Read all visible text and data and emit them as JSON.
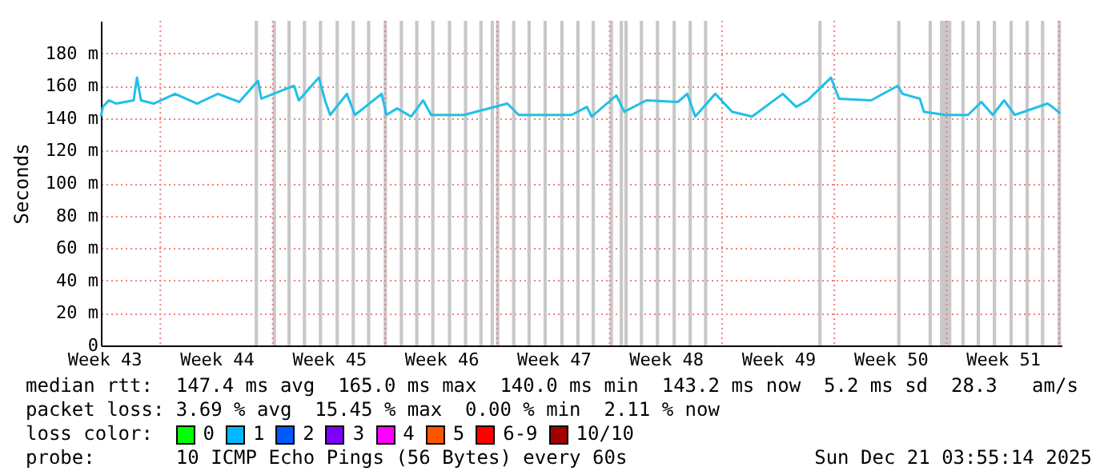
{
  "chart_data": {
    "type": "line",
    "ylabel": "Seconds",
    "x": [
      "2025-10-22T07:00",
      "2025-10-22T10:00",
      "2025-10-22T19:00",
      "2025-10-23T06:00",
      "2025-10-24T08:00",
      "2025-10-24T13:00",
      "2025-10-24T19:00",
      "2025-10-25T14:00",
      "2025-10-26T22:00",
      "2025-10-28T07:00",
      "2025-10-29T14:00",
      "2025-10-30T22:00",
      "2025-11-01T02:00",
      "2025-11-01T07:00",
      "2025-11-03T08:00",
      "2025-11-03T15:00",
      "2025-11-04T21:00",
      "2025-11-05T07:00",
      "2025-11-05T14:00",
      "2025-11-06T15:00",
      "2025-11-07T03:00",
      "2025-11-08T19:00",
      "2025-11-09T02:00",
      "2025-11-09T18:00",
      "2025-11-10T15:00",
      "2025-11-11T09:00",
      "2025-11-11T21:00",
      "2025-11-13T22:00",
      "2025-11-16T15:00",
      "2025-11-17T08:00",
      "2025-11-20T15:00",
      "2025-11-21T14:00",
      "2025-11-21T21:00",
      "2025-11-23T10:00",
      "2025-11-23T22:00",
      "2025-11-25T07:00",
      "2025-11-27T06:00",
      "2025-11-27T20:00",
      "2025-11-28T08:00",
      "2025-11-29T14:00",
      "2025-11-30T15:00",
      "2025-12-01T21:00",
      "2025-12-03T19:00",
      "2025-12-04T15:00",
      "2025-12-05T08:00",
      "2025-12-06T19:00",
      "2025-12-07T07:00",
      "2025-12-09T07:00",
      "2025-12-10T23:00",
      "2025-12-11T06:00",
      "2025-12-12T08:00",
      "2025-12-12T14:00",
      "2025-12-13T22:00",
      "2025-12-15T08:00",
      "2025-12-16T04:00",
      "2025-12-16T21:00",
      "2025-12-17T14:00",
      "2025-12-18T06:00",
      "2025-12-20T07:00",
      "2025-12-20T14:00",
      "2025-12-21T02:00"
    ],
    "series": [
      {
        "color": "#20c0e8",
        "values": [
          141,
          147,
          151,
          149,
          151,
          165,
          151,
          149,
          155,
          149,
          155,
          150,
          163,
          152,
          160,
          151,
          165,
          150,
          142,
          155,
          142,
          155,
          142,
          146,
          141,
          151,
          142,
          142,
          149,
          142,
          142,
          147,
          141,
          154,
          144,
          151,
          150,
          155,
          141,
          155,
          144,
          141,
          155,
          147,
          151,
          165,
          152,
          151,
          160,
          155,
          152,
          144,
          142,
          142,
          150,
          142,
          151,
          142,
          149,
          147,
          143
        ]
      }
    ],
    "xlim": [
      "2025-10-22T07:00",
      "2025-12-21T03:55"
    ],
    "xticks": [
      {
        "value": "2025-10-22T12:00",
        "label": "Week 43"
      },
      {
        "value": "2025-10-26",
        "label": null
      },
      {
        "value": "2025-10-29T12:00",
        "label": "Week 44"
      },
      {
        "value": "2025-11-02",
        "label": null
      },
      {
        "value": "2025-11-05T12:00",
        "label": "Week 45"
      },
      {
        "value": "2025-11-09",
        "label": null
      },
      {
        "value": "2025-11-12T12:00",
        "label": "Week 46"
      },
      {
        "value": "2025-11-16",
        "label": null
      },
      {
        "value": "2025-11-19T12:00",
        "label": "Week 47"
      },
      {
        "value": "2025-11-23",
        "label": null
      },
      {
        "value": "2025-11-26T12:00",
        "label": "Week 48"
      },
      {
        "value": "2025-11-30",
        "label": null
      },
      {
        "value": "2025-12-03T12:00",
        "label": "Week 49"
      },
      {
        "value": "2025-12-07",
        "label": null
      },
      {
        "value": "2025-12-10T12:00",
        "label": "Week 50"
      },
      {
        "value": "2025-12-14",
        "label": null
      },
      {
        "value": "2025-12-17T12:00",
        "label": "Week 51"
      },
      {
        "value": "2025-12-21",
        "label": null
      }
    ],
    "ylim": [
      0,
      200
    ],
    "yticks": [
      0,
      {
        "value": 20,
        "label": "20 m"
      },
      {
        "value": 40,
        "label": "40 m"
      },
      {
        "value": 60,
        "label": "60 m"
      },
      {
        "value": 80,
        "label": "80 m"
      },
      {
        "value": 100,
        "label": "100 m"
      },
      {
        "value": 120,
        "label": "120 m"
      },
      {
        "value": 140,
        "label": "140 m"
      },
      {
        "value": 160,
        "label": "160 m"
      },
      {
        "value": 180,
        "label": "180 m"
      }
    ],
    "grid": true,
    "bands": [
      {
        "axis": "x",
        "from": "2025-10-31T21:00",
        "to": "2025-11-01T02:00",
        "color": "#c8c8c8"
      },
      {
        "axis": "x",
        "from": "2025-11-02T00:00",
        "to": "2025-11-02T05:00",
        "color": "#c8c8c8"
      },
      {
        "axis": "x",
        "from": "2025-11-02T22:00",
        "to": "2025-11-03T03:00",
        "color": "#c8c8c8"
      },
      {
        "axis": "x",
        "from": "2025-11-03T21:00",
        "to": "2025-11-04T02:00",
        "color": "#c8c8c8"
      },
      {
        "axis": "x",
        "from": "2025-11-04T21:00",
        "to": "2025-11-05T02:00",
        "color": "#c8c8c8"
      },
      {
        "axis": "x",
        "from": "2025-11-05T22:00",
        "to": "2025-11-06T03:00",
        "color": "#c8c8c8"
      },
      {
        "axis": "x",
        "from": "2025-11-06T22:00",
        "to": "2025-11-07T03:00",
        "color": "#c8c8c8"
      },
      {
        "axis": "x",
        "from": "2025-11-07T21:00",
        "to": "2025-11-08T02:00",
        "color": "#c8c8c8"
      },
      {
        "axis": "x",
        "from": "2025-11-08T22:00",
        "to": "2025-11-09T03:00",
        "color": "#c8c8c8"
      },
      {
        "axis": "x",
        "from": "2025-11-09T22:00",
        "to": "2025-11-10T03:00",
        "color": "#c8c8c8"
      },
      {
        "axis": "x",
        "from": "2025-11-10T21:00",
        "to": "2025-11-11T02:00",
        "color": "#c8c8c8"
      },
      {
        "axis": "x",
        "from": "2025-11-11T21:00",
        "to": "2025-11-12T02:00",
        "color": "#c8c8c8"
      },
      {
        "axis": "x",
        "from": "2025-11-12T22:00",
        "to": "2025-11-13T03:00",
        "color": "#c8c8c8"
      },
      {
        "axis": "x",
        "from": "2025-11-13T22:00",
        "to": "2025-11-14T03:00",
        "color": "#c8c8c8"
      },
      {
        "axis": "x",
        "from": "2025-11-14T21:00",
        "to": "2025-11-15T02:00",
        "color": "#c8c8c8"
      },
      {
        "axis": "x",
        "from": "2025-11-15T14:00",
        "to": "2025-11-15T19:00",
        "color": "#c8c8c8"
      },
      {
        "axis": "x",
        "from": "2025-11-15T22:00",
        "to": "2025-11-16T03:00",
        "color": "#c8c8c8"
      },
      {
        "axis": "x",
        "from": "2025-11-16T22:00",
        "to": "2025-11-17T03:00",
        "color": "#c8c8c8"
      },
      {
        "axis": "x",
        "from": "2025-11-17T21:00",
        "to": "2025-11-18T02:00",
        "color": "#c8c8c8"
      },
      {
        "axis": "x",
        "from": "2025-11-18T21:00",
        "to": "2025-11-19T02:00",
        "color": "#c8c8c8"
      },
      {
        "axis": "x",
        "from": "2025-11-19T22:00",
        "to": "2025-11-20T03:00",
        "color": "#c8c8c8"
      },
      {
        "axis": "x",
        "from": "2025-11-20T22:00",
        "to": "2025-11-21T03:00",
        "color": "#c8c8c8"
      },
      {
        "axis": "x",
        "from": "2025-11-21T21:00",
        "to": "2025-11-22T02:00",
        "color": "#c8c8c8"
      },
      {
        "axis": "x",
        "from": "2025-11-23T00:00",
        "to": "2025-11-23T05:00",
        "color": "#c8c8c8"
      },
      {
        "axis": "x",
        "from": "2025-11-23T15:00",
        "to": "2025-11-23T20:00",
        "color": "#c8c8c8"
      },
      {
        "axis": "x",
        "from": "2025-11-23T22:00",
        "to": "2025-11-24T03:00",
        "color": "#c8c8c8"
      },
      {
        "axis": "x",
        "from": "2025-11-24T21:00",
        "to": "2025-11-25T02:00",
        "color": "#c8c8c8"
      },
      {
        "axis": "x",
        "from": "2025-11-25T21:00",
        "to": "2025-11-26T02:00",
        "color": "#c8c8c8"
      },
      {
        "axis": "x",
        "from": "2025-11-26T22:00",
        "to": "2025-11-27T03:00",
        "color": "#c8c8c8"
      },
      {
        "axis": "x",
        "from": "2025-11-27T22:00",
        "to": "2025-11-28T03:00",
        "color": "#c8c8c8"
      },
      {
        "axis": "x",
        "from": "2025-11-28T21:00",
        "to": "2025-11-29T02:00",
        "color": "#c8c8c8"
      },
      {
        "axis": "x",
        "from": "2025-12-06T00:00",
        "to": "2025-12-06T05:00",
        "color": "#c8c8c8"
      },
      {
        "axis": "x",
        "from": "2025-12-10T22:00",
        "to": "2025-12-11T03:00",
        "color": "#c8c8c8"
      },
      {
        "axis": "x",
        "from": "2025-12-12T21:00",
        "to": "2025-12-13T02:00",
        "color": "#c8c8c8"
      },
      {
        "axis": "x",
        "from": "2025-12-13T14:00",
        "to": "2025-12-14T07:00",
        "color": "#c8c8c8"
      },
      {
        "axis": "x",
        "from": "2025-12-14T22:00",
        "to": "2025-12-15T03:00",
        "color": "#c8c8c8"
      },
      {
        "axis": "x",
        "from": "2025-12-15T21:00",
        "to": "2025-12-16T02:00",
        "color": "#c8c8c8"
      },
      {
        "axis": "x",
        "from": "2025-12-16T21:00",
        "to": "2025-12-17T02:00",
        "color": "#c8c8c8"
      },
      {
        "axis": "x",
        "from": "2025-12-17T22:00",
        "to": "2025-12-18T03:00",
        "color": "#c8c8c8"
      },
      {
        "axis": "x",
        "from": "2025-12-18T22:00",
        "to": "2025-12-19T03:00",
        "color": "#c8c8c8"
      },
      {
        "axis": "x",
        "from": "2025-12-19T21:00",
        "to": "2025-12-20T02:00",
        "color": "#c8c8c8"
      },
      {
        "axis": "x",
        "from": "2025-12-20T22:00",
        "to": "2025-12-21T03:00",
        "color": "#c8c8c8"
      }
    ],
    "annotations": [
      "median rtt:  147.4 ms avg  165.0 ms max  140.0 ms min  143.2 ms now  5.2 ms sd  28.3   am/s",
      "packet loss: 3.69 % avg  15.45 % max  0.00 % min  2.11 % now",
      "loss color:",
      "0",
      "1",
      "2",
      "3",
      "4",
      "5",
      "6-9",
      "10/10",
      "probe:       10 ICMP Echo Pings (56 Bytes) every 60s",
      "Sun Dec 21 03:55:14 2025"
    ]
  }
}
